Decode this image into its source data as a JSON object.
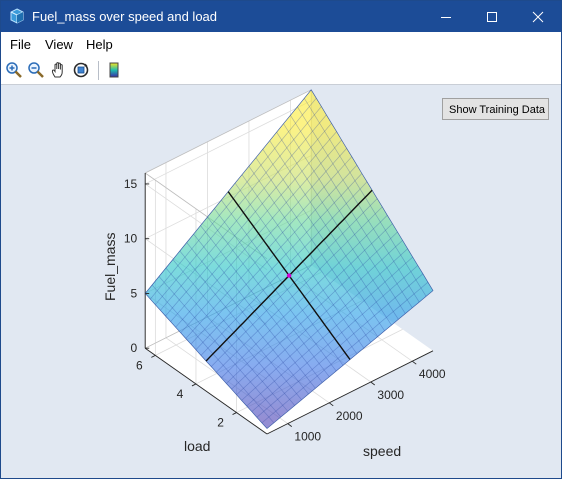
{
  "window": {
    "title": "Fuel_mass over speed and load",
    "icon": "matlab-figure-icon"
  },
  "menu": {
    "items": [
      "File",
      "View",
      "Help"
    ]
  },
  "toolbar": {
    "tools": [
      "zoom-in-icon",
      "zoom-out-icon",
      "pan-hand-icon",
      "rotate-3d-icon",
      "colorbar-icon"
    ]
  },
  "button": {
    "show_training_data": "Show Training Data"
  },
  "chart_data": {
    "type": "surface",
    "title": "",
    "xlabel": "speed",
    "ylabel": "load",
    "zlabel": "Fuel_mass",
    "x_ticks": [
      "1000",
      "2000",
      "3000",
      "4000"
    ],
    "y_ticks": [
      "2",
      "4",
      "6"
    ],
    "z_ticks": [
      "0",
      "5",
      "10",
      "15"
    ],
    "xlim": [
      500,
      4500
    ],
    "ylim": [
      0.5,
      6.5
    ],
    "zlim": [
      0,
      16
    ],
    "colormap": "parula, semi-transparent",
    "grid": true,
    "corner_values": [
      {
        "speed": 500,
        "load": 0.5,
        "fuel_mass": 0.5
      },
      {
        "speed": 4500,
        "load": 0.5,
        "fuel_mass": 5.5
      },
      {
        "speed": 500,
        "load": 6.5,
        "fuel_mass": 5
      },
      {
        "speed": 4500,
        "load": 6.5,
        "fuel_mass": 16
      }
    ],
    "marked_point": {
      "speed": 2500,
      "load": 3.5,
      "fuel_mass": 5
    }
  }
}
